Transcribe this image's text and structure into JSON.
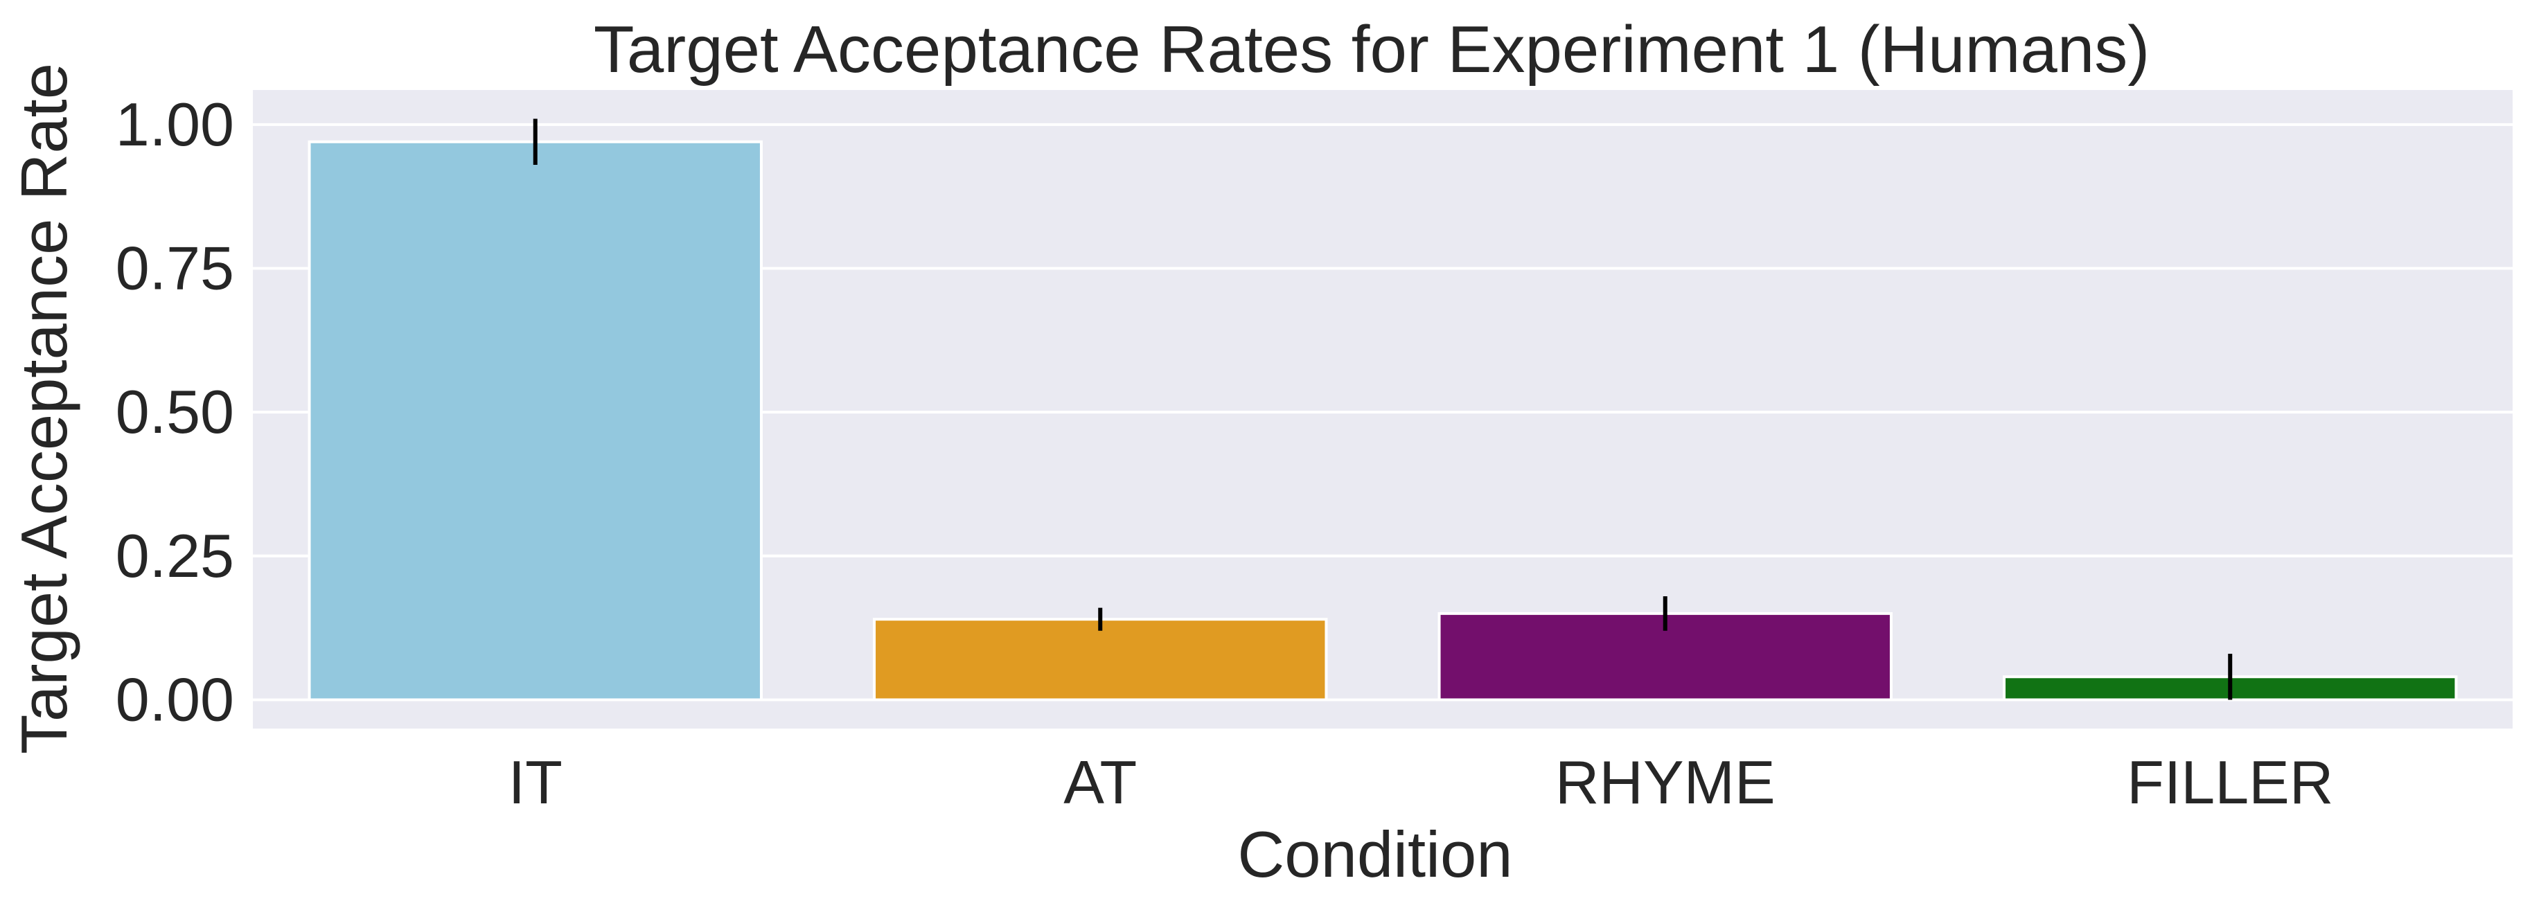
{
  "chart_data": {
    "type": "bar",
    "title": "Target Acceptance Rates for Experiment 1 (Humans)",
    "xlabel": "Condition",
    "ylabel": "Target Acceptance Rate",
    "categories": [
      "IT",
      "AT",
      "RHYME",
      "FILLER"
    ],
    "values": [
      0.97,
      0.14,
      0.15,
      0.04
    ],
    "error_bars": [
      [
        0.93,
        1.01
      ],
      [
        0.12,
        0.16
      ],
      [
        0.12,
        0.18
      ],
      [
        0.0,
        0.08
      ]
    ],
    "colors": [
      "#93c8de",
      "#e09b22",
      "#730f6c",
      "#117314"
    ],
    "ylim": [
      -0.05,
      1.06
    ],
    "yticks": [
      0.0,
      0.25,
      0.5,
      0.75,
      1.0
    ],
    "ytick_labels": [
      "0.00",
      "0.25",
      "0.50",
      "0.75",
      "1.00"
    ],
    "grid": true,
    "legend": "none"
  }
}
